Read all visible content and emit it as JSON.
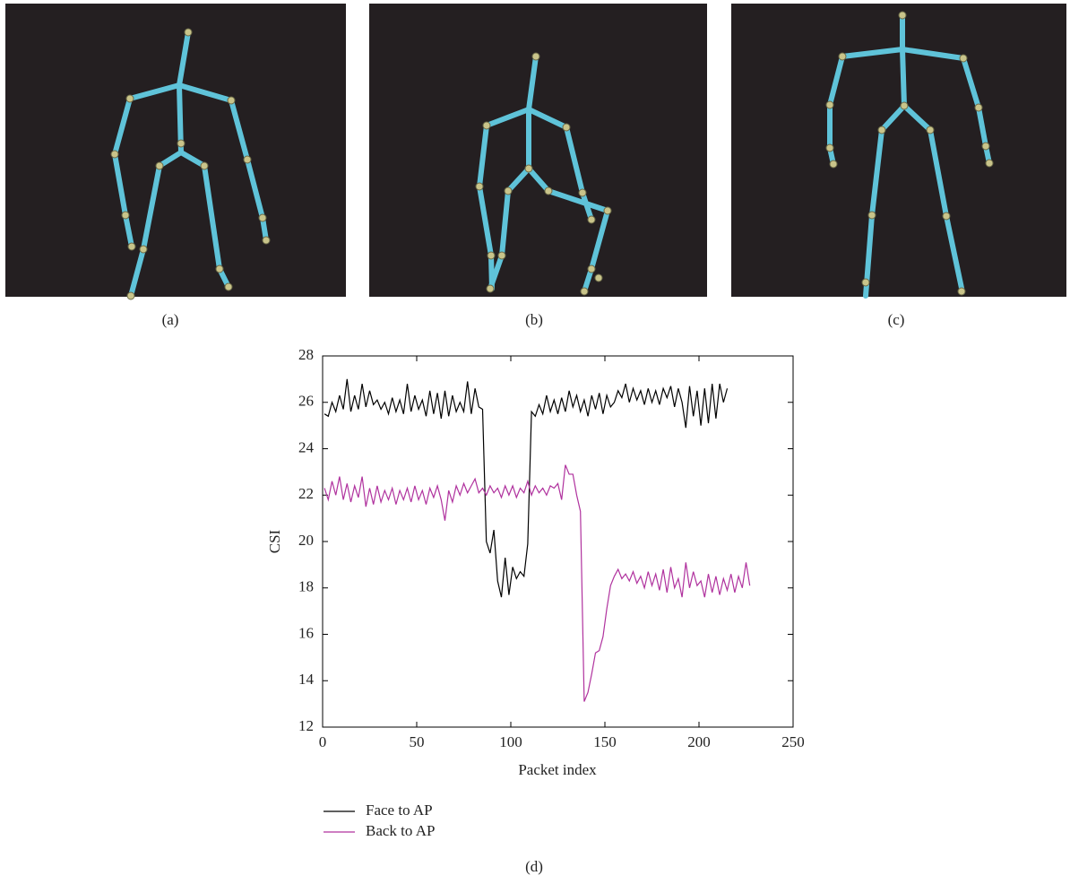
{
  "panel_labels": [
    "(a)",
    "(b)",
    "(c)",
    "(d)"
  ],
  "chart_data": {
    "type": "line",
    "x_label": "Packet index",
    "y_label": "CSI",
    "xlim": [
      0,
      250
    ],
    "xticks": [
      0,
      50,
      100,
      150,
      200,
      250
    ],
    "ylim": [
      12,
      28
    ],
    "yticks": [
      12,
      14,
      16,
      18,
      20,
      22,
      24,
      26,
      28
    ],
    "series": [
      {
        "name": "Face to AP",
        "color": "#000000",
        "x": [
          1,
          3,
          5,
          7,
          9,
          11,
          13,
          15,
          17,
          19,
          21,
          23,
          25,
          27,
          29,
          31,
          33,
          35,
          37,
          39,
          41,
          43,
          45,
          47,
          49,
          51,
          53,
          55,
          57,
          59,
          61,
          63,
          65,
          67,
          69,
          71,
          73,
          75,
          77,
          79,
          81,
          83,
          85,
          87,
          89,
          91,
          93,
          95,
          97,
          99,
          101,
          103,
          105,
          107,
          109,
          111,
          113,
          115,
          117,
          119,
          121,
          123,
          125,
          127,
          129,
          131,
          133,
          135,
          137,
          139,
          141,
          143,
          145,
          147,
          149,
          151,
          153,
          155,
          157,
          159,
          161,
          163,
          165,
          167,
          169,
          171,
          173,
          175,
          177,
          179,
          181,
          183,
          185,
          187,
          189,
          191,
          193,
          195,
          197,
          199,
          201,
          203,
          205,
          207,
          209,
          211,
          213,
          215
        ],
        "values": [
          25.5,
          25.4,
          26.0,
          25.6,
          26.3,
          25.7,
          27.0,
          25.6,
          26.3,
          25.7,
          26.8,
          25.8,
          26.5,
          25.9,
          26.1,
          25.7,
          26.0,
          25.5,
          26.2,
          25.6,
          26.1,
          25.5,
          26.8,
          25.6,
          26.3,
          25.7,
          26.1,
          25.4,
          26.5,
          25.5,
          26.4,
          25.3,
          26.5,
          25.4,
          26.3,
          25.6,
          26.0,
          25.6,
          26.9,
          25.5,
          26.6,
          25.8,
          25.7,
          20.0,
          19.5,
          20.5,
          18.3,
          17.6,
          19.3,
          17.7,
          18.9,
          18.4,
          18.7,
          18.5,
          19.9,
          25.6,
          25.4,
          25.9,
          25.5,
          26.3,
          25.6,
          26.1,
          25.5,
          26.2,
          25.6,
          26.5,
          25.8,
          26.3,
          25.6,
          26.1,
          25.4,
          26.3,
          25.7,
          26.4,
          25.5,
          26.3,
          25.8,
          26.0,
          26.5,
          26.2,
          26.8,
          26.0,
          26.6,
          26.1,
          26.5,
          25.9,
          26.6,
          26.0,
          26.5,
          25.9,
          26.6,
          26.2,
          26.7,
          25.8,
          26.6,
          26.0,
          24.9,
          26.7,
          25.4,
          26.5,
          25.0,
          26.6,
          25.1,
          26.8,
          25.3,
          26.8,
          26.0,
          26.6
        ]
      },
      {
        "name": "Back to AP",
        "color": "#b0329e",
        "x": [
          1,
          3,
          5,
          7,
          9,
          11,
          13,
          15,
          17,
          19,
          21,
          23,
          25,
          27,
          29,
          31,
          33,
          35,
          37,
          39,
          41,
          43,
          45,
          47,
          49,
          51,
          53,
          55,
          57,
          59,
          61,
          63,
          65,
          67,
          69,
          71,
          73,
          75,
          77,
          79,
          81,
          83,
          85,
          87,
          89,
          91,
          93,
          95,
          97,
          99,
          101,
          103,
          105,
          107,
          109,
          111,
          113,
          115,
          117,
          119,
          121,
          123,
          125,
          127,
          129,
          131,
          133,
          135,
          137,
          139,
          141,
          143,
          145,
          147,
          149,
          151,
          153,
          155,
          157,
          159,
          161,
          163,
          165,
          167,
          169,
          171,
          173,
          175,
          177,
          179,
          181,
          183,
          185,
          187,
          189,
          191,
          193,
          195,
          197,
          199,
          201,
          203,
          205,
          207,
          209,
          211,
          213,
          215,
          217,
          219,
          221,
          223,
          225,
          227
        ],
        "values": [
          22.3,
          21.8,
          22.6,
          22.0,
          22.8,
          21.8,
          22.5,
          21.7,
          22.4,
          21.9,
          22.8,
          21.5,
          22.3,
          21.6,
          22.4,
          21.7,
          22.2,
          21.8,
          22.3,
          21.6,
          22.2,
          21.8,
          22.3,
          21.7,
          22.4,
          21.8,
          22.2,
          21.6,
          22.3,
          21.9,
          22.4,
          21.8,
          20.9,
          22.2,
          21.7,
          22.4,
          22.0,
          22.5,
          22.1,
          22.4,
          22.7,
          22.1,
          22.3,
          22.0,
          22.4,
          22.1,
          22.3,
          21.9,
          22.4,
          22.0,
          22.4,
          21.9,
          22.3,
          22.1,
          22.6,
          22.0,
          22.4,
          22.1,
          22.3,
          22.0,
          22.4,
          22.3,
          22.5,
          21.8,
          23.3,
          22.9,
          22.9,
          22.0,
          21.3,
          13.1,
          13.5,
          14.3,
          15.2,
          15.3,
          15.9,
          17.1,
          18.1,
          18.5,
          18.8,
          18.4,
          18.6,
          18.3,
          18.7,
          18.2,
          18.5,
          18.0,
          18.7,
          18.1,
          18.6,
          17.9,
          18.8,
          17.8,
          18.9,
          18.0,
          18.4,
          17.6,
          19.1,
          18.0,
          18.7,
          18.1,
          18.3,
          17.6,
          18.6,
          17.8,
          18.5,
          17.7,
          18.4,
          17.9,
          18.6,
          17.8,
          18.5,
          18.0,
          19.1,
          18.1
        ]
      }
    ]
  }
}
